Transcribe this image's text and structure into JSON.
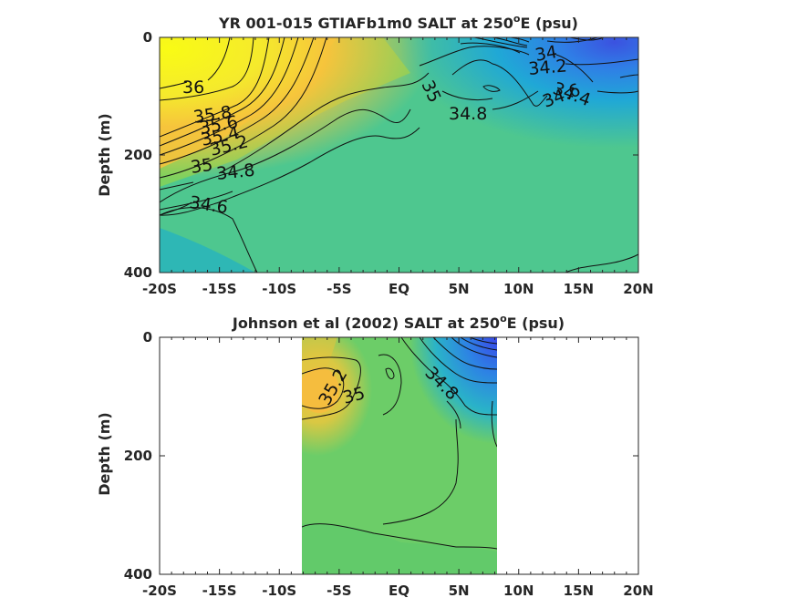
{
  "chart_data": [
    {
      "type": "contour",
      "title": "YR 001-015 GTIAFb1m0 SALT at 250",
      "title_sup": "o",
      "title_suffix": "E (psu)",
      "ylabel": "Depth (m)",
      "xlim": [
        -20,
        20
      ],
      "ylim": [
        0,
        400
      ],
      "y_reversed": true,
      "x_ticks": [
        -20,
        -15,
        -10,
        -5,
        0,
        5,
        10,
        15,
        20
      ],
      "x_tick_labels": [
        "-20S",
        "-15S",
        "-10S",
        "-5S",
        "EQ",
        "5N",
        "10N",
        "15N",
        "20N"
      ],
      "y_ticks": [
        0,
        200,
        400
      ],
      "y_tick_labels": [
        "0",
        "200",
        "400"
      ],
      "colorscale": "parula",
      "contour_labels": [
        {
          "text": "36",
          "x": -17.4,
          "y": 85
        },
        {
          "text": "35.8",
          "x": -16.5,
          "y": 130
        },
        {
          "text": "35.6",
          "x": -16.3,
          "y": 148
        },
        {
          "text": "35.4",
          "x": -16.0,
          "y": 162
        },
        {
          "text": "35.2",
          "x": -15.8,
          "y": 177
        },
        {
          "text": "35",
          "x": -17.6,
          "y": 215
        },
        {
          "text": "34.8",
          "x": -14.5,
          "y": 225
        },
        {
          "text": "34.6",
          "x": -16.5,
          "y": 285
        },
        {
          "text": "35",
          "x": 2.9,
          "y": 90
        },
        {
          "text": "34.8",
          "x": 6.2,
          "y": 127
        },
        {
          "text": "34",
          "x": 11.7,
          "y": 28
        },
        {
          "text": "34.2",
          "x": 12.2,
          "y": 52
        },
        {
          "text": "34.4",
          "x": 14.8,
          "y": 92
        },
        {
          "text": "34.6",
          "x": 14.5,
          "y": 115
        }
      ]
    },
    {
      "type": "contour",
      "title": "Johnson et al (2002) SALT at 250",
      "title_sup": "o",
      "title_suffix": "E (psu)",
      "ylabel": "Depth (m)",
      "xlim": [
        -20,
        20
      ],
      "ylim": [
        0,
        400
      ],
      "y_reversed": true,
      "data_xrange": [
        -8,
        8
      ],
      "x_ticks": [
        -20,
        -15,
        -10,
        -5,
        0,
        5,
        10,
        15,
        20
      ],
      "x_tick_labels": [
        "-20S",
        "-15S",
        "-10S",
        "-5S",
        "EQ",
        "5N",
        "10N",
        "15N",
        "20N"
      ],
      "y_ticks": [
        0,
        200,
        400
      ],
      "y_tick_labels": [
        "0",
        "200",
        "400"
      ],
      "colorscale": "parula",
      "contour_labels": [
        {
          "text": "35.2",
          "x": -4.8,
          "y": 85
        },
        {
          "text": "35",
          "x": -3.9,
          "y": 108
        },
        {
          "text": "34.8",
          "x": 3.6,
          "y": 90
        }
      ]
    }
  ]
}
